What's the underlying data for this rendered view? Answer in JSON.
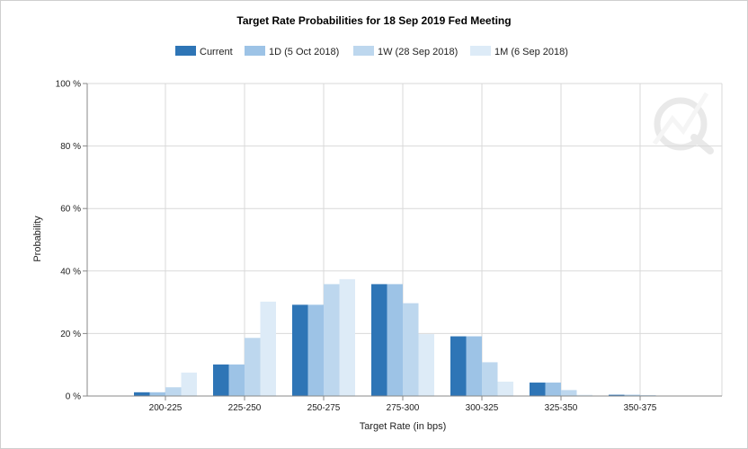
{
  "chart_data": {
    "type": "bar",
    "title": "Target Rate Probabilities for 18 Sep 2019 Fed Meeting",
    "xlabel": "Target Rate (in bps)",
    "ylabel": "Probability",
    "ylim": [
      0,
      100
    ],
    "y_ticks": [
      "0 %",
      "20 %",
      "40 %",
      "60 %",
      "80 %",
      "100 %"
    ],
    "y_tick_values": [
      0,
      20,
      40,
      60,
      80,
      100
    ],
    "grid": true,
    "legend_position": "top-center",
    "categories": [
      "200-225",
      "225-250",
      "250-275",
      "275-300",
      "300-325",
      "325-350",
      "350-375"
    ],
    "series": [
      {
        "name": "Current",
        "color": "#2e75b6",
        "values": [
          1.2,
          10.1,
          29.2,
          35.8,
          19.1,
          4.3,
          0.4
        ]
      },
      {
        "name": "1D (5 Oct 2018)",
        "color": "#9dc3e6",
        "values": [
          1.2,
          10.1,
          29.2,
          35.8,
          19.1,
          4.3,
          0.4
        ]
      },
      {
        "name": "1W (28 Sep 2018)",
        "color": "#bdd7ee",
        "values": [
          2.8,
          18.6,
          35.8,
          29.7,
          10.8,
          1.9,
          0.3
        ]
      },
      {
        "name": "1M (6 Sep 2018)",
        "color": "#ddebf7",
        "values": [
          7.5,
          30.2,
          37.4,
          19.8,
          4.6,
          0.4,
          0.0
        ]
      }
    ]
  }
}
